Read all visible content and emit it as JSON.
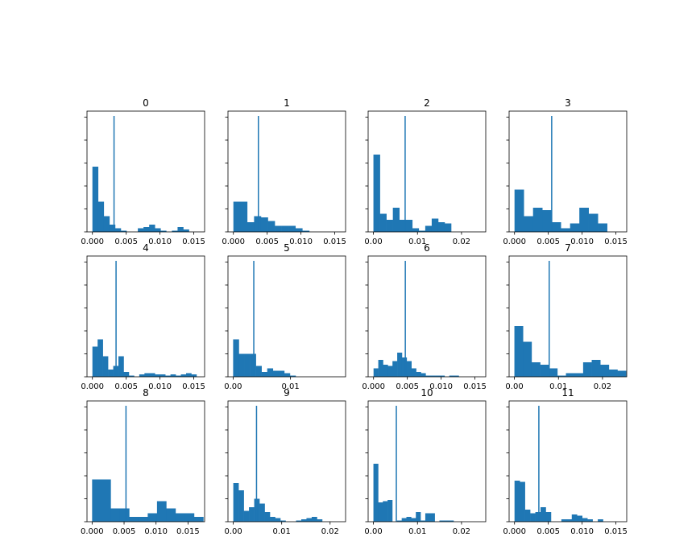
{
  "chart_data": [
    {
      "type": "bar",
      "title": "0",
      "bar_color": "#1f77b4",
      "xlim": [
        -0.0008,
        0.0166
      ],
      "ylim": [
        0,
        1
      ],
      "bins": {
        "start": 0.0,
        "width": 0.00084,
        "heights": [
          0.54,
          0.25,
          0.13,
          0.06,
          0.03,
          0.01,
          0.0,
          0.0,
          0.03,
          0.04,
          0.06,
          0.03,
          0.01,
          0.0,
          0.01,
          0.04,
          0.02
        ]
      },
      "vline": 0.0032,
      "vline_top": 0.96,
      "x_ticks": [
        {
          "v": 0.0,
          "label": "0.000"
        },
        {
          "v": 0.005,
          "label": "0.005"
        },
        {
          "v": 0.01,
          "label": "0.010"
        },
        {
          "v": 0.015,
          "label": "0.015"
        }
      ]
    },
    {
      "type": "bar",
      "title": "1",
      "bar_color": "#1f77b4",
      "xlim": [
        -0.0008,
        0.0166
      ],
      "ylim": [
        0,
        1
      ],
      "bins": {
        "start": 0.0,
        "width": 0.00102,
        "heights": [
          0.25,
          0.25,
          0.08,
          0.13,
          0.12,
          0.09,
          0.05,
          0.05,
          0.05,
          0.03,
          0.01,
          0.0,
          0.0,
          0.0,
          0.0
        ]
      },
      "vline": 0.0037,
      "vline_top": 0.96,
      "x_ticks": [
        {
          "v": 0.0,
          "label": "0.000"
        },
        {
          "v": 0.005,
          "label": "0.005"
        },
        {
          "v": 0.01,
          "label": "0.010"
        },
        {
          "v": 0.015,
          "label": "0.015"
        }
      ]
    },
    {
      "type": "bar",
      "title": "2",
      "bar_color": "#1f77b4",
      "xlim": [
        -0.0012,
        0.0255
      ],
      "ylim": [
        0,
        1
      ],
      "bins": {
        "start": 0.0,
        "width": 0.00147,
        "heights": [
          0.64,
          0.15,
          0.1,
          0.2,
          0.1,
          0.1,
          0.03,
          0.01,
          0.05,
          0.11,
          0.08,
          0.07,
          0.0,
          0.0,
          0.0,
          0.0
        ]
      },
      "vline": 0.0072,
      "vline_top": 0.96,
      "x_ticks": [
        {
          "v": 0.0,
          "label": "0.00"
        },
        {
          "v": 0.01,
          "label": "0.01"
        },
        {
          "v": 0.02,
          "label": "0.02"
        }
      ]
    },
    {
      "type": "bar",
      "title": "3",
      "bar_color": "#1f77b4",
      "xlim": [
        -0.0008,
        0.0166
      ],
      "ylim": [
        0,
        1
      ],
      "bins": {
        "start": 0.0,
        "width": 0.00137,
        "heights": [
          0.35,
          0.13,
          0.2,
          0.18,
          0.08,
          0.03,
          0.07,
          0.2,
          0.15,
          0.07,
          0.0,
          0.0
        ]
      },
      "vline": 0.0055,
      "vline_top": 0.96,
      "x_ticks": [
        {
          "v": 0.0,
          "label": "0.000"
        },
        {
          "v": 0.005,
          "label": "0.005"
        },
        {
          "v": 0.01,
          "label": "0.010"
        },
        {
          "v": 0.015,
          "label": "0.015"
        }
      ]
    },
    {
      "type": "bar",
      "title": "4",
      "bar_color": "#1f77b4",
      "xlim": [
        -0.0008,
        0.0166
      ],
      "ylim": [
        0,
        1
      ],
      "bins": {
        "start": 0.0,
        "width": 0.00077,
        "heights": [
          0.25,
          0.31,
          0.17,
          0.06,
          0.09,
          0.17,
          0.04,
          0.01,
          0.0,
          0.02,
          0.03,
          0.03,
          0.02,
          0.02,
          0.01,
          0.02,
          0.01,
          0.02,
          0.03,
          0.02,
          0.0
        ]
      },
      "vline": 0.0035,
      "vline_top": 0.96,
      "x_ticks": [
        {
          "v": 0.0,
          "label": "0.000"
        },
        {
          "v": 0.005,
          "label": "0.005"
        },
        {
          "v": 0.01,
          "label": "0.010"
        },
        {
          "v": 0.015,
          "label": "0.015"
        }
      ]
    },
    {
      "type": "bar",
      "title": "5",
      "bar_color": "#1f77b4",
      "xlim": [
        -0.0009,
        0.0196
      ],
      "ylim": [
        0,
        1
      ],
      "bins": {
        "start": 0.0,
        "width": 0.00099,
        "heights": [
          0.31,
          0.19,
          0.19,
          0.19,
          0.09,
          0.04,
          0.07,
          0.05,
          0.05,
          0.03,
          0.01,
          0.0,
          0.0,
          0.0,
          0.0,
          0.0,
          0.0,
          0.0,
          0.0
        ]
      },
      "vline": 0.0036,
      "vline_top": 0.96,
      "x_ticks": [
        {
          "v": 0.0,
          "label": "0.00"
        },
        {
          "v": 0.01,
          "label": "0.01"
        }
      ]
    },
    {
      "type": "bar",
      "title": "6",
      "bar_color": "#1f77b4",
      "xlim": [
        -0.0008,
        0.0166
      ],
      "ylim": [
        0,
        1
      ],
      "bins": {
        "start": 0.0,
        "width": 0.0007,
        "heights": [
          0.07,
          0.14,
          0.1,
          0.09,
          0.13,
          0.2,
          0.16,
          0.13,
          0.07,
          0.04,
          0.03,
          0.01,
          0.01,
          0.01,
          0.01,
          0.0,
          0.01,
          0.01,
          0.0,
          0.0
        ]
      },
      "vline": 0.0047,
      "vline_top": 0.96,
      "x_ticks": [
        {
          "v": 0.0,
          "label": "0.000"
        },
        {
          "v": 0.005,
          "label": "0.005"
        },
        {
          "v": 0.01,
          "label": "0.010"
        },
        {
          "v": 0.015,
          "label": "0.015"
        }
      ]
    },
    {
      "type": "bar",
      "title": "7",
      "bar_color": "#1f77b4",
      "xlim": [
        -0.0012,
        0.0255
      ],
      "ylim": [
        0,
        1
      ],
      "bins": {
        "start": 0.0,
        "width": 0.00195,
        "heights": [
          0.42,
          0.29,
          0.12,
          0.1,
          0.07,
          0.01,
          0.03,
          0.03,
          0.12,
          0.14,
          0.1,
          0.06,
          0.05
        ]
      },
      "vline": 0.0079,
      "vline_top": 0.96,
      "x_ticks": [
        {
          "v": 0.0,
          "label": "0.00"
        },
        {
          "v": 0.01,
          "label": "0.01"
        },
        {
          "v": 0.02,
          "label": "0.02"
        }
      ]
    },
    {
      "type": "bar",
      "title": "8",
      "bar_color": "#1f77b4",
      "xlim": [
        -0.0008,
        0.0176
      ],
      "ylim": [
        0,
        1
      ],
      "bins": {
        "start": 0.0,
        "width": 0.00145,
        "heights": [
          0.35,
          0.35,
          0.11,
          0.11,
          0.04,
          0.04,
          0.07,
          0.17,
          0.11,
          0.07,
          0.07,
          0.04
        ]
      },
      "vline": 0.0053,
      "vline_top": 0.96,
      "x_ticks": [
        {
          "v": 0.0,
          "label": "0.000"
        },
        {
          "v": 0.005,
          "label": "0.005"
        },
        {
          "v": 0.01,
          "label": "0.010"
        },
        {
          "v": 0.015,
          "label": "0.015"
        }
      ]
    },
    {
      "type": "bar",
      "title": "9",
      "bar_color": "#1f77b4",
      "xlim": [
        -0.0011,
        0.0232
      ],
      "ylim": [
        0,
        1
      ],
      "bins": {
        "start": 0.0,
        "width": 0.00108,
        "heights": [
          0.32,
          0.26,
          0.09,
          0.12,
          0.19,
          0.15,
          0.08,
          0.04,
          0.03,
          0.01,
          0.0,
          0.0,
          0.01,
          0.02,
          0.03,
          0.04,
          0.02,
          0.0,
          0.0,
          0.0
        ]
      },
      "vline": 0.0048,
      "vline_top": 0.96,
      "x_ticks": [
        {
          "v": 0.0,
          "label": "0.00"
        },
        {
          "v": 0.01,
          "label": "0.01"
        },
        {
          "v": 0.02,
          "label": "0.02"
        }
      ]
    },
    {
      "type": "bar",
      "title": "10",
      "bar_color": "#1f77b4",
      "xlim": [
        -0.0012,
        0.0255
      ],
      "ylim": [
        0,
        1
      ],
      "bins": {
        "start": 0.0,
        "width": 0.00107,
        "heights": [
          0.48,
          0.16,
          0.17,
          0.18,
          0.0,
          0.01,
          0.03,
          0.04,
          0.03,
          0.08,
          0.01,
          0.07,
          0.07,
          0.0,
          0.01,
          0.01,
          0.01,
          0.0,
          0.0,
          0.0
        ]
      },
      "vline": 0.0052,
      "vline_top": 0.96,
      "x_ticks": [
        {
          "v": 0.0,
          "label": "0.00"
        },
        {
          "v": 0.01,
          "label": "0.01"
        },
        {
          "v": 0.02,
          "label": "0.02"
        }
      ]
    },
    {
      "type": "bar",
      "title": "11",
      "bar_color": "#1f77b4",
      "xlim": [
        -0.0008,
        0.0166
      ],
      "ylim": [
        0,
        1
      ],
      "bins": {
        "start": 0.0,
        "width": 0.00077,
        "heights": [
          0.34,
          0.33,
          0.1,
          0.07,
          0.08,
          0.12,
          0.08,
          0.0,
          0.0,
          0.02,
          0.02,
          0.06,
          0.05,
          0.03,
          0.02,
          0.0,
          0.02,
          0.0,
          0.0
        ]
      },
      "vline": 0.0036,
      "vline_top": 0.96,
      "x_ticks": [
        {
          "v": 0.0,
          "label": "0.000"
        },
        {
          "v": 0.005,
          "label": "0.005"
        },
        {
          "v": 0.01,
          "label": "0.010"
        },
        {
          "v": 0.015,
          "label": "0.015"
        }
      ]
    }
  ]
}
